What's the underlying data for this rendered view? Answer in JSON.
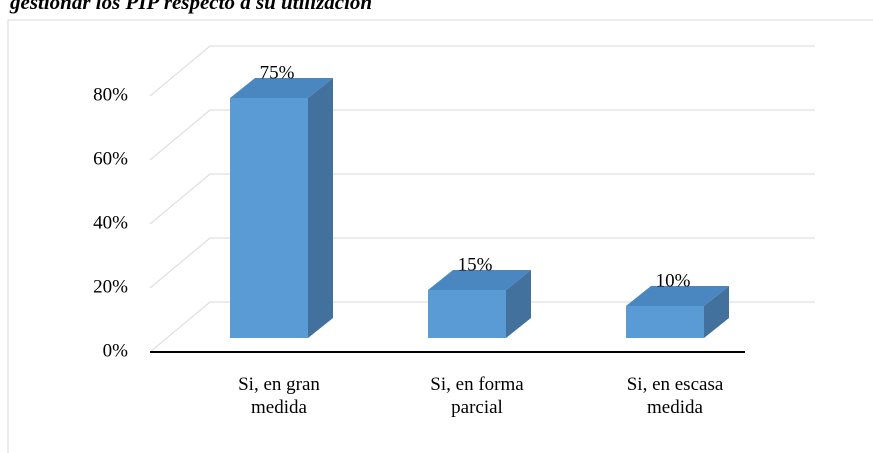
{
  "chart_data": {
    "type": "bar3d",
    "title": "gestionar los PIP respecto a su utilización",
    "categories": [
      "Si, en gran medida",
      "Si, en forma parcial",
      "Si, en escasa medida"
    ],
    "values": [
      75,
      15,
      10
    ],
    "value_labels": [
      "75%",
      "15%",
      "10%"
    ],
    "color": "#5b9bd5",
    "ylim": [
      0,
      80
    ],
    "yticks": [
      {
        "value": 0,
        "label": "0%"
      },
      {
        "value": 20,
        "label": "20%"
      },
      {
        "value": 40,
        "label": "40%"
      },
      {
        "value": 60,
        "label": "60%"
      },
      {
        "value": 80,
        "label": "80%"
      }
    ],
    "grid": true
  }
}
